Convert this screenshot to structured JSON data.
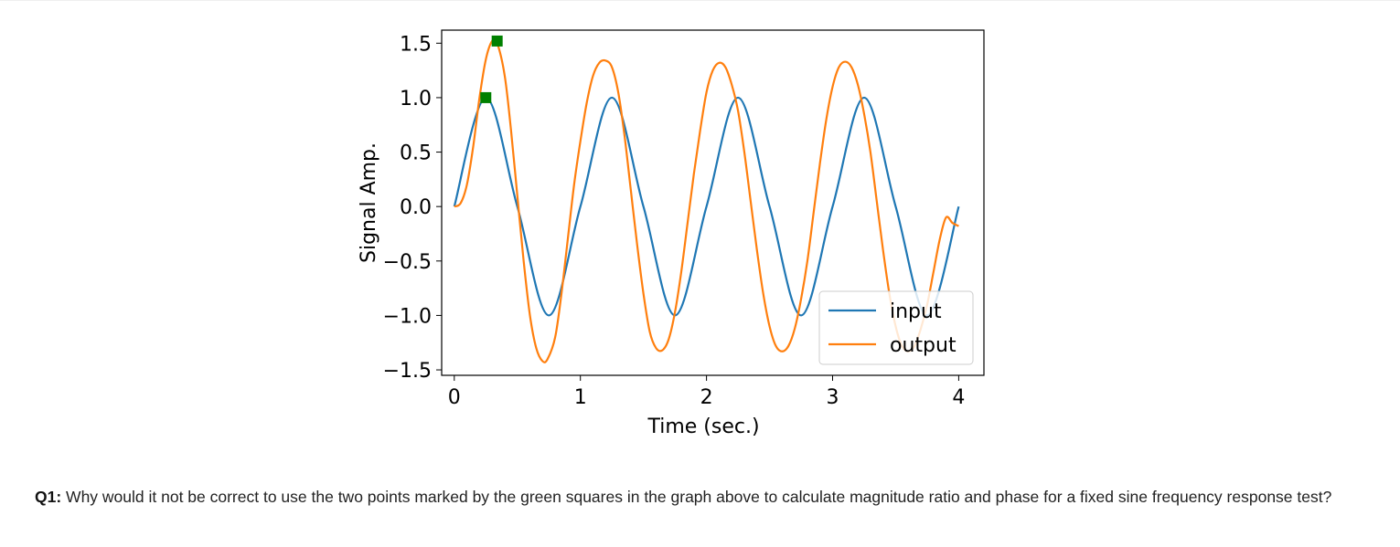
{
  "chart_data": {
    "type": "line",
    "xlabel": "Time (sec.)",
    "ylabel": "Signal Amp.",
    "xlim": [
      -0.1,
      4.2
    ],
    "ylim": [
      -1.55,
      1.62
    ],
    "xticks": [
      0,
      1,
      2,
      3,
      4
    ],
    "yticks": [
      -1.5,
      -1.0,
      -0.5,
      0.0,
      0.5,
      1.0,
      1.5
    ],
    "xtick_labels": [
      "0",
      "1",
      "2",
      "3",
      "4"
    ],
    "ytick_labels": [
      "−1.5",
      "−1.0",
      "−0.5",
      "0.0",
      "0.5",
      "1.0",
      "1.5"
    ],
    "grid": false,
    "legend_position": "lower-right",
    "series": [
      {
        "name": "input",
        "color": "#1f77b4",
        "x": [
          0,
          0.25,
          0.5,
          0.75,
          1.0,
          1.25,
          1.5,
          1.75,
          2.0,
          2.25,
          2.5,
          2.75,
          3.0,
          3.25,
          3.5,
          3.75,
          4.0
        ],
        "y": [
          0.0,
          1.0,
          0.0,
          -1.0,
          0.0,
          1.0,
          0.0,
          -1.0,
          0.0,
          1.0,
          0.0,
          -1.0,
          0.0,
          1.0,
          0.0,
          -1.0,
          0.0
        ]
      },
      {
        "name": "output",
        "color": "#ff7f0e",
        "x": [
          0,
          0.05,
          0.1,
          0.15,
          0.2,
          0.25,
          0.3,
          0.34,
          0.4,
          0.45,
          0.5,
          0.55,
          0.6,
          0.65,
          0.7,
          0.74,
          0.8,
          0.85,
          0.9,
          0.95,
          1.0,
          1.05,
          1.1,
          1.15,
          1.2,
          1.25,
          1.3,
          1.35,
          1.4,
          1.45,
          1.5,
          1.55,
          1.6,
          1.65,
          1.7,
          1.75,
          1.8,
          1.85,
          1.9,
          1.95,
          2.0,
          2.05,
          2.1,
          2.15,
          2.2,
          2.25,
          2.3,
          2.35,
          2.4,
          2.45,
          2.5,
          2.55,
          2.6,
          2.65,
          2.7,
          2.75,
          2.8,
          2.85,
          2.9,
          2.95,
          3.0,
          3.05,
          3.1,
          3.15,
          3.2,
          3.25,
          3.3,
          3.35,
          3.4,
          3.45,
          3.5,
          3.55,
          3.6,
          3.65,
          3.7,
          3.75,
          3.8,
          3.85,
          3.9,
          3.95,
          4.0
        ],
        "y": [
          0.0,
          0.03,
          0.2,
          0.55,
          1.0,
          1.35,
          1.52,
          1.5,
          1.2,
          0.7,
          0.1,
          -0.5,
          -1.0,
          -1.3,
          -1.42,
          -1.4,
          -1.2,
          -0.8,
          -0.3,
          0.2,
          0.6,
          0.95,
          1.2,
          1.32,
          1.34,
          1.28,
          1.05,
          0.65,
          0.15,
          -0.35,
          -0.8,
          -1.15,
          -1.3,
          -1.32,
          -1.22,
          -0.97,
          -0.6,
          -0.15,
          0.3,
          0.7,
          1.05,
          1.25,
          1.32,
          1.28,
          1.12,
          0.88,
          0.5,
          0.05,
          -0.4,
          -0.8,
          -1.1,
          -1.28,
          -1.33,
          -1.28,
          -1.12,
          -0.85,
          -0.5,
          -0.05,
          0.4,
          0.8,
          1.1,
          1.28,
          1.33,
          1.28,
          1.12,
          0.85,
          0.5,
          0.05,
          -0.4,
          -0.8,
          -1.1,
          -1.28,
          -1.33,
          -1.28,
          -1.12,
          -0.9,
          -0.6,
          -0.3,
          -0.1,
          -0.15,
          -0.18
        ]
      }
    ],
    "markers": [
      {
        "x": 0.25,
        "y": 1.0,
        "shape": "square",
        "color": "#008000"
      },
      {
        "x": 0.34,
        "y": 1.52,
        "shape": "square",
        "color": "#008000"
      }
    ]
  },
  "question": {
    "label": "Q1:",
    "text": " Why would it not be correct to use the two points marked by the green squares in the graph above to calculate magnitude ratio and phase for a fixed sine frequency response test?"
  }
}
